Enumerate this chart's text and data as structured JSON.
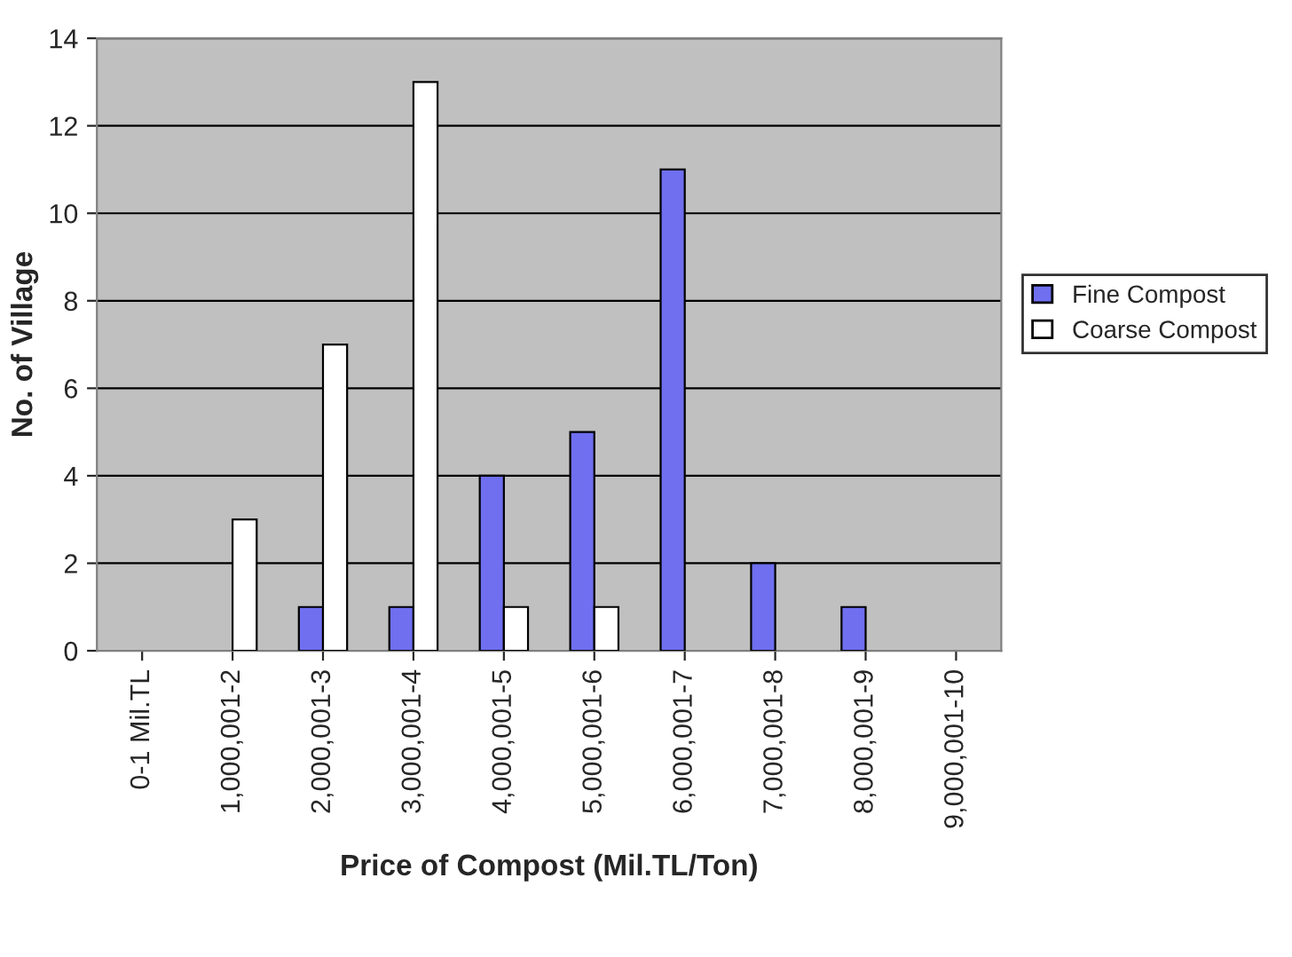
{
  "chart_data": {
    "type": "bar",
    "xlabel": "Price of Compost (Mil.TL/Ton)",
    "ylabel": "No. of Village",
    "categories": [
      "0-1 Mil.TL",
      "1,000,001-2",
      "2,000,001-3",
      "3,000,001-4",
      "4,000,001-5",
      "5,000,001-6",
      "6,000,001-7",
      "7,000,001-8",
      "8,000,001-9",
      "9,000,001-10"
    ],
    "series": [
      {
        "name": "Fine Compost",
        "color": "#6f6ff0",
        "values": [
          0,
          0,
          1,
          1,
          4,
          5,
          11,
          2,
          1,
          0
        ]
      },
      {
        "name": "Coarse Compost",
        "color": "#ffffff",
        "values": [
          0,
          3,
          7,
          13,
          1,
          1,
          0,
          0,
          0,
          0
        ]
      }
    ],
    "ylim": [
      0,
      14
    ],
    "yticks": [
      0,
      2,
      4,
      6,
      8,
      10,
      12,
      14
    ],
    "grid": "y",
    "legend": "right"
  }
}
